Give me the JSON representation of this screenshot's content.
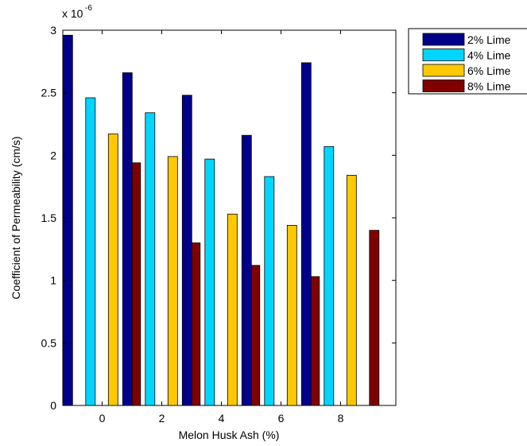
{
  "chart_data": {
    "type": "bar",
    "title": "",
    "xlabel": "Melon Husk Ash (%)",
    "ylabel": "Coefficient of Permeability (cm/s)",
    "y_multiplier_base": "x 10",
    "y_multiplier_exponent": "-6",
    "categories": [
      "0",
      "2",
      "4",
      "6",
      "8"
    ],
    "ylim": [
      0,
      3
    ],
    "yticks": [
      "0",
      "0.5",
      "1",
      "1.5",
      "2",
      "2.5",
      "3"
    ],
    "grid": false,
    "legend_position": "outside-top-right",
    "series": [
      {
        "name": "2% Lime",
        "color": "#00008B",
        "values": [
          2.96,
          2.66,
          2.48,
          2.16,
          2.74
        ]
      },
      {
        "name": "4% Lime",
        "color": "#00D5FF",
        "values": [
          2.46,
          2.34,
          1.97,
          1.83,
          2.07
        ]
      },
      {
        "name": "6% Lime",
        "color": "#FFC800",
        "values": [
          2.17,
          1.99,
          1.53,
          1.44,
          1.84
        ]
      },
      {
        "name": "8% Lime",
        "color": "#800000",
        "values": [
          1.94,
          1.3,
          1.12,
          1.03,
          1.4
        ]
      }
    ]
  }
}
